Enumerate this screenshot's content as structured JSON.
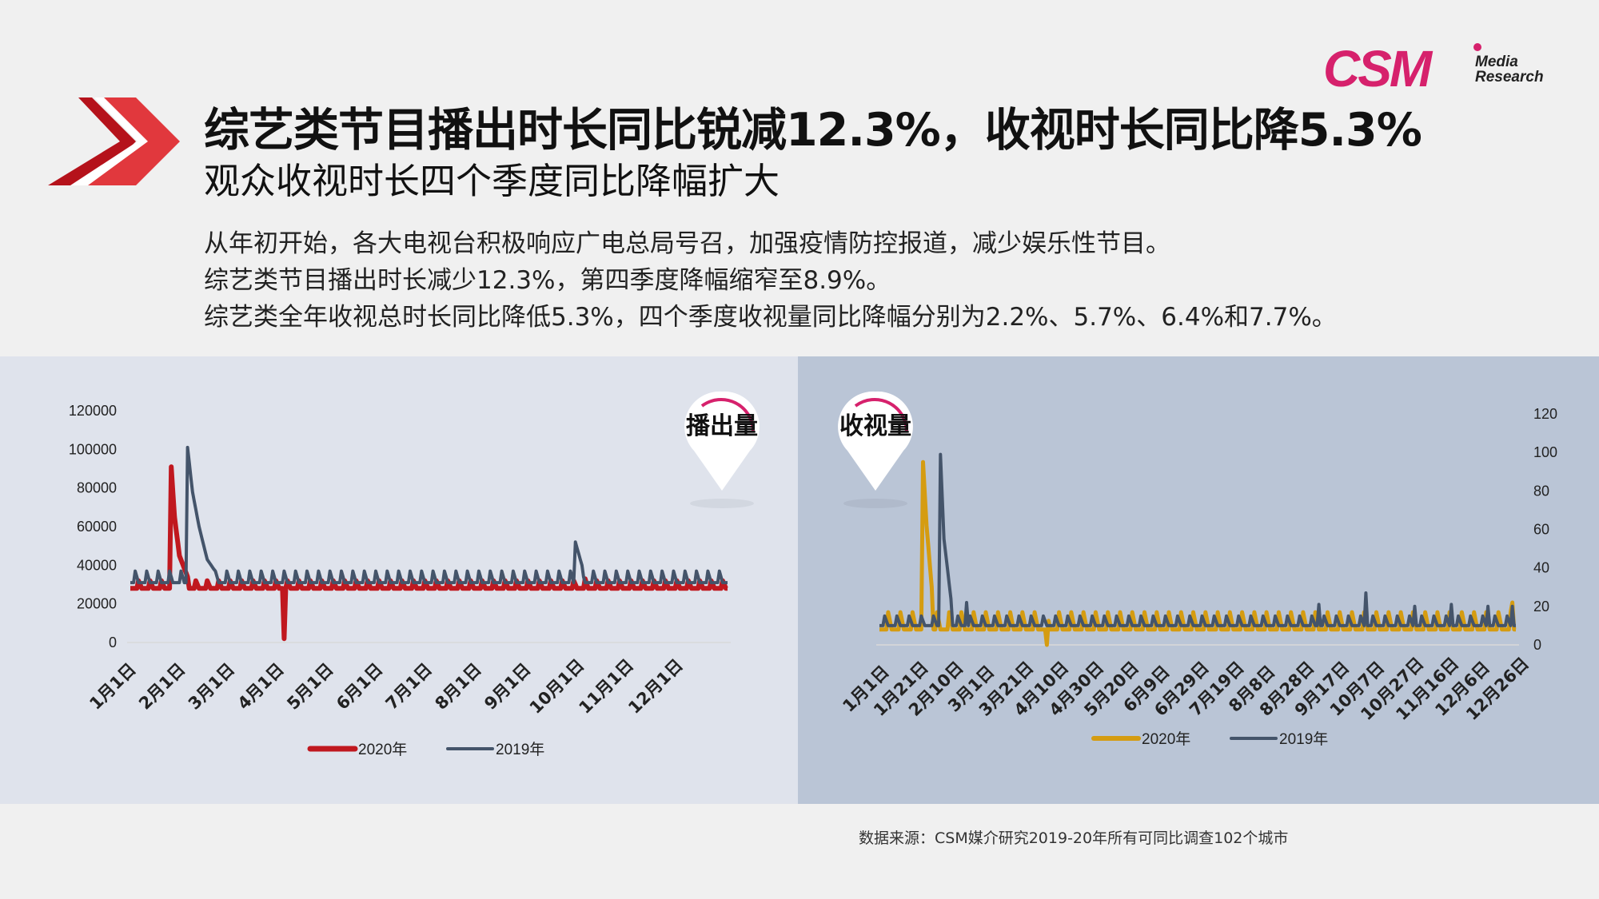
{
  "logo": {
    "brand": "CSM",
    "sub1": "Media",
    "sub2": "Research",
    "color": "#d6216c"
  },
  "header": {
    "title": "综艺类节目播出时长同比锐减12.3%，收视时长同比降5.3%",
    "subtitle": "观众收视时长四个季度同比降幅扩大",
    "lines": [
      "从年初开始，各大电视台积极响应广电总局号召，加强疫情防控报道，减少娱乐性节目。",
      "综艺类节目播出时长减少12.3%，第四季度降幅缩窄至8.9%。",
      "综艺类全年收视总时长同比降低5.3%，四个季度收视量同比降幅分别为2.2%、5.7%、6.4%和7.7%。"
    ]
  },
  "source": "数据来源：CSM媒介研究2019-20年所有可同比调查102个城市",
  "chart_data": [
    {
      "type": "line",
      "badge": "播出量",
      "title": "",
      "xlabel": "",
      "ylabel": "",
      "ylim": [
        0,
        120000
      ],
      "yticks": [
        "0",
        "20000",
        "40000",
        "60000",
        "80000",
        "100000",
        "120000"
      ],
      "categories": [
        "1月1日",
        "2月1日",
        "3月1日",
        "4月1日",
        "5月1日",
        "6月1日",
        "7月1日",
        "8月1日",
        "9月1日",
        "10月1日",
        "11月1日",
        "12月1日"
      ],
      "legend_position": "bottom",
      "grid": false,
      "series": [
        {
          "name": "2020年",
          "color": "#c0181f",
          "values_by_day": {
            "baseline": 28000,
            "weekly_peak": 32000,
            "spikes": [
              {
                "day": 25,
                "value": 91000
              },
              {
                "day": 27,
                "value": 65000
              },
              {
                "day": 30,
                "value": 45000
              },
              {
                "day": 35,
                "value": 34000
              },
              {
                "day": 94,
                "value": 2000
              },
              {
                "day": 278,
                "value": 33000
              }
            ]
          }
        },
        {
          "name": "2019年",
          "color": "#44546a",
          "values_by_day": {
            "baseline": 31000,
            "weekly_peak": 37000,
            "spikes": [
              {
                "day": 35,
                "value": 101000
              },
              {
                "day": 38,
                "value": 78000
              },
              {
                "day": 42,
                "value": 60000
              },
              {
                "day": 47,
                "value": 43000
              },
              {
                "day": 51,
                "value": 38000
              },
              {
                "day": 272,
                "value": 52000
              },
              {
                "day": 276,
                "value": 40000
              }
            ]
          }
        }
      ]
    },
    {
      "type": "line",
      "badge": "收视量",
      "title": "",
      "xlabel": "",
      "ylabel": "",
      "ylim": [
        0,
        120
      ],
      "yticks": [
        "0",
        "20",
        "40",
        "60",
        "80",
        "100",
        "120"
      ],
      "y_axis_side": "right",
      "categories": [
        "1月1日",
        "1月21日",
        "2月10日",
        "3月1日",
        "3月21日",
        "4月10日",
        "4月30日",
        "5月20日",
        "6月9日",
        "6月29日",
        "7月19日",
        "8月8日",
        "8月28日",
        "9月17日",
        "10月7日",
        "10月27日",
        "11月16日",
        "12月6日",
        "12月26日"
      ],
      "legend_position": "bottom",
      "grid": false,
      "series": [
        {
          "name": "2020年",
          "color": "#d59c11",
          "values_by_day": {
            "baseline": 8,
            "weekly_peak": 17,
            "spikes": [
              {
                "day": 25,
                "value": 95
              },
              {
                "day": 27,
                "value": 62
              },
              {
                "day": 30,
                "value": 30
              },
              {
                "day": 96,
                "value": 0
              },
              {
                "day": 363,
                "value": 22
              }
            ]
          }
        },
        {
          "name": "2019年",
          "color": "#44546a",
          "values_by_day": {
            "baseline": 10,
            "weekly_peak": 15,
            "spikes": [
              {
                "day": 35,
                "value": 99
              },
              {
                "day": 37,
                "value": 55
              },
              {
                "day": 41,
                "value": 24
              },
              {
                "day": 50,
                "value": 22
              },
              {
                "day": 252,
                "value": 21
              },
              {
                "day": 279,
                "value": 27
              },
              {
                "day": 307,
                "value": 20
              },
              {
                "day": 328,
                "value": 21
              },
              {
                "day": 349,
                "value": 20
              },
              {
                "day": 363,
                "value": 20
              }
            ]
          }
        }
      ]
    }
  ]
}
